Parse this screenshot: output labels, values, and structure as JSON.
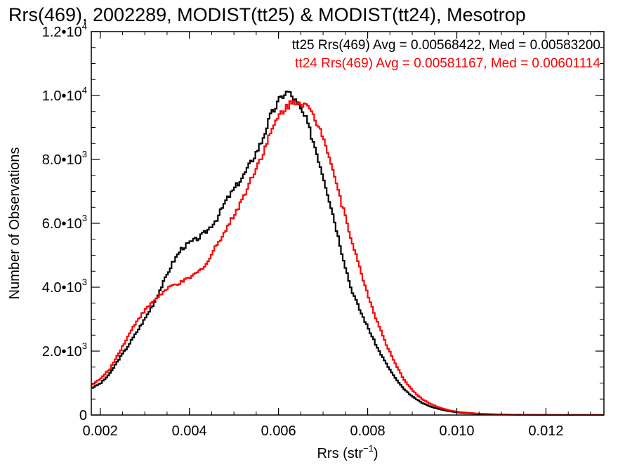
{
  "chart_data": {
    "type": "line",
    "title": "Rrs(469), 2002289, MODIST(tt25) & MODIST(tt24), Mesotrop",
    "xlabel_main": "Rrs (str",
    "xlabel_exp": "−1",
    "xlabel_end": ")",
    "ylabel": "Number of Observations",
    "xlim": [
      0.0018,
      0.0133
    ],
    "ylim": [
      0,
      12000
    ],
    "x_ticks": [
      {
        "value": 0.002,
        "label": "0.002"
      },
      {
        "value": 0.004,
        "label": "0.004"
      },
      {
        "value": 0.006,
        "label": "0.006"
      },
      {
        "value": 0.008,
        "label": "0.008"
      },
      {
        "value": 0.01,
        "label": "0.010"
      },
      {
        "value": 0.012,
        "label": "0.012"
      }
    ],
    "y_ticks": [
      {
        "value": 0,
        "mant": "0",
        "exp": ""
      },
      {
        "value": 2000,
        "mant": "2.0•10",
        "exp": "3"
      },
      {
        "value": 4000,
        "mant": "4.0•10",
        "exp": "3"
      },
      {
        "value": 6000,
        "mant": "6.0•10",
        "exp": "3"
      },
      {
        "value": 8000,
        "mant": "8.0•10",
        "exp": "3"
      },
      {
        "value": 10000,
        "mant": "1.0•10",
        "exp": "4"
      },
      {
        "value": 12000,
        "mant": "1.2•10",
        "exp": "4"
      }
    ],
    "grid": false,
    "series": [
      {
        "name": "tt25",
        "color": "#000000",
        "stat_label": "tt25 Rrs(469) Avg = 0.00568422, Med = 0.00583200",
        "points": [
          [
            0.0018,
            850
          ],
          [
            0.002,
            1000
          ],
          [
            0.0022,
            1300
          ],
          [
            0.0024,
            1750
          ],
          [
            0.0026,
            2150
          ],
          [
            0.0028,
            2600
          ],
          [
            0.003,
            3050
          ],
          [
            0.0032,
            3550
          ],
          [
            0.0034,
            4150
          ],
          [
            0.0036,
            4750
          ],
          [
            0.0038,
            5200
          ],
          [
            0.004,
            5400
          ],
          [
            0.0042,
            5550
          ],
          [
            0.0044,
            5800
          ],
          [
            0.0046,
            6150
          ],
          [
            0.0048,
            6700
          ],
          [
            0.005,
            7100
          ],
          [
            0.0052,
            7500
          ],
          [
            0.0054,
            8000
          ],
          [
            0.0056,
            8550
          ],
          [
            0.0058,
            9350
          ],
          [
            0.006,
            9850
          ],
          [
            0.0061,
            10050
          ],
          [
            0.0062,
            10120
          ],
          [
            0.0064,
            9750
          ],
          [
            0.0066,
            9250
          ],
          [
            0.0068,
            8400
          ],
          [
            0.007,
            7400
          ],
          [
            0.0072,
            6300
          ],
          [
            0.0074,
            5100
          ],
          [
            0.0076,
            4000
          ],
          [
            0.0078,
            3300
          ],
          [
            0.008,
            2700
          ],
          [
            0.0082,
            2100
          ],
          [
            0.0084,
            1600
          ],
          [
            0.0086,
            1150
          ],
          [
            0.0088,
            800
          ],
          [
            0.009,
            560
          ],
          [
            0.0092,
            380
          ],
          [
            0.0094,
            260
          ],
          [
            0.0096,
            180
          ],
          [
            0.0098,
            120
          ],
          [
            0.01,
            80
          ],
          [
            0.0104,
            40
          ],
          [
            0.0108,
            20
          ],
          [
            0.0112,
            10
          ],
          [
            0.012,
            4
          ],
          [
            0.0133,
            2
          ]
        ]
      },
      {
        "name": "tt24",
        "color": "#ff0000",
        "stat_label": "tt24 Rrs(469) Avg = 0.00581167, Med = 0.00601114",
        "points": [
          [
            0.0018,
            950
          ],
          [
            0.002,
            1150
          ],
          [
            0.0022,
            1450
          ],
          [
            0.0024,
            1950
          ],
          [
            0.0026,
            2450
          ],
          [
            0.0028,
            2950
          ],
          [
            0.003,
            3300
          ],
          [
            0.0032,
            3600
          ],
          [
            0.0034,
            3850
          ],
          [
            0.0036,
            4050
          ],
          [
            0.0038,
            4150
          ],
          [
            0.004,
            4300
          ],
          [
            0.0042,
            4500
          ],
          [
            0.0044,
            4800
          ],
          [
            0.0046,
            5350
          ],
          [
            0.0048,
            5800
          ],
          [
            0.005,
            6300
          ],
          [
            0.0052,
            6850
          ],
          [
            0.0054,
            7500
          ],
          [
            0.0056,
            8100
          ],
          [
            0.0058,
            8800
          ],
          [
            0.006,
            9400
          ],
          [
            0.0062,
            9700
          ],
          [
            0.0064,
            9850
          ],
          [
            0.0066,
            9700
          ],
          [
            0.0068,
            9250
          ],
          [
            0.007,
            8700
          ],
          [
            0.0072,
            7700
          ],
          [
            0.0074,
            6600
          ],
          [
            0.0076,
            5600
          ],
          [
            0.0078,
            4600
          ],
          [
            0.008,
            3700
          ],
          [
            0.0082,
            2900
          ],
          [
            0.0084,
            2200
          ],
          [
            0.0086,
            1600
          ],
          [
            0.0088,
            1100
          ],
          [
            0.009,
            750
          ],
          [
            0.0092,
            500
          ],
          [
            0.0094,
            340
          ],
          [
            0.0096,
            230
          ],
          [
            0.0098,
            150
          ],
          [
            0.01,
            100
          ],
          [
            0.0104,
            50
          ],
          [
            0.0108,
            25
          ],
          [
            0.0112,
            12
          ],
          [
            0.012,
            5
          ],
          [
            0.0133,
            2
          ]
        ]
      }
    ]
  }
}
